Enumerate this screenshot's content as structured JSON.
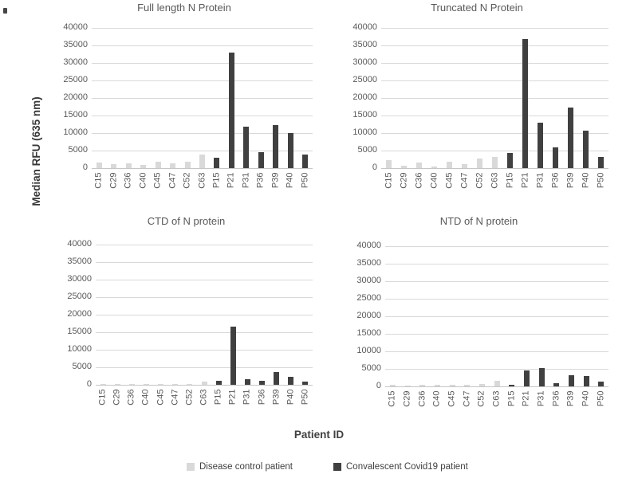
{
  "figure": {
    "ylabel": "Median RFU (635 nm)",
    "xlabel": "Patient ID"
  },
  "colors": {
    "control_bar": "#d9d9d9",
    "covid_bar": "#404040",
    "gridline": "#d9d9d9",
    "tick_text": "#595959",
    "title_text": "#595959"
  },
  "legend": {
    "items": [
      {
        "label": "Disease control patient",
        "color": "#d9d9d9"
      },
      {
        "label": "Convalescent Covid19 patient",
        "color": "#404040"
      }
    ]
  },
  "chart_data": [
    {
      "type": "bar",
      "title": "Full length N Protein",
      "categories": [
        "C15",
        "C29",
        "C36",
        "C40",
        "C45",
        "C47",
        "C52",
        "C63",
        "P15",
        "P21",
        "P31",
        "P36",
        "P39",
        "P40",
        "P50"
      ],
      "series": [
        {
          "name": "Disease control patient",
          "color": "#d9d9d9",
          "values": [
            1500,
            1200,
            1400,
            800,
            1800,
            1400,
            1800,
            3900,
            null,
            null,
            null,
            null,
            null,
            null,
            null
          ]
        },
        {
          "name": "Convalescent Covid19 patient",
          "color": "#404040",
          "values": [
            null,
            null,
            null,
            null,
            null,
            null,
            null,
            null,
            2900,
            32900,
            11900,
            4600,
            12300,
            10100,
            3900
          ]
        }
      ],
      "ylim": [
        0,
        40000
      ],
      "ytick_step": 5000,
      "grid": true
    },
    {
      "type": "bar",
      "title": "Truncated N Protein",
      "categories": [
        "C15",
        "C29",
        "C36",
        "C40",
        "C45",
        "C47",
        "C52",
        "C63",
        "P15",
        "P21",
        "P31",
        "P36",
        "P39",
        "P40",
        "P50"
      ],
      "series": [
        {
          "name": "Disease control patient",
          "color": "#d9d9d9",
          "values": [
            2200,
            600,
            1500,
            500,
            1900,
            1200,
            2700,
            3200,
            null,
            null,
            null,
            null,
            null,
            null,
            null
          ]
        },
        {
          "name": "Convalescent Covid19 patient",
          "color": "#404040",
          "values": [
            null,
            null,
            null,
            null,
            null,
            null,
            null,
            null,
            4400,
            36900,
            13000,
            5900,
            17300,
            10700,
            3200
          ]
        }
      ],
      "ylim": [
        0,
        40000
      ],
      "ytick_step": 5000,
      "grid": true
    },
    {
      "type": "bar",
      "title": "CTD of N protein",
      "categories": [
        "C15",
        "C29",
        "C36",
        "C40",
        "C45",
        "C47",
        "C52",
        "C63",
        "P15",
        "P21",
        "P31",
        "P36",
        "P39",
        "P40",
        "P50"
      ],
      "series": [
        {
          "name": "Disease control patient",
          "color": "#d9d9d9",
          "values": [
            150,
            100,
            200,
            100,
            250,
            150,
            250,
            1000,
            null,
            null,
            null,
            null,
            null,
            null,
            null
          ]
        },
        {
          "name": "Convalescent Covid19 patient",
          "color": "#404040",
          "values": [
            null,
            null,
            null,
            null,
            null,
            null,
            null,
            null,
            1200,
            16700,
            1500,
            1100,
            3700,
            2300,
            900
          ]
        }
      ],
      "ylim": [
        0,
        40000
      ],
      "ytick_step": 5000,
      "grid": true
    },
    {
      "type": "bar",
      "title": "NTD of N protein",
      "categories": [
        "C15",
        "C29",
        "C36",
        "C40",
        "C45",
        "C47",
        "C52",
        "C63",
        "P15",
        "P21",
        "P31",
        "P36",
        "P39",
        "P40",
        "P50"
      ],
      "series": [
        {
          "name": "Disease control patient",
          "color": "#d9d9d9",
          "values": [
            400,
            150,
            500,
            350,
            550,
            450,
            600,
            1600,
            null,
            null,
            null,
            null,
            null,
            null,
            null
          ]
        },
        {
          "name": "Convalescent Covid19 patient",
          "color": "#404040",
          "values": [
            null,
            null,
            null,
            null,
            null,
            null,
            null,
            null,
            500,
            4600,
            5200,
            1000,
            3100,
            2900,
            1400
          ]
        }
      ],
      "ylim": [
        0,
        40000
      ],
      "ytick_step": 5000,
      "grid": true
    }
  ]
}
